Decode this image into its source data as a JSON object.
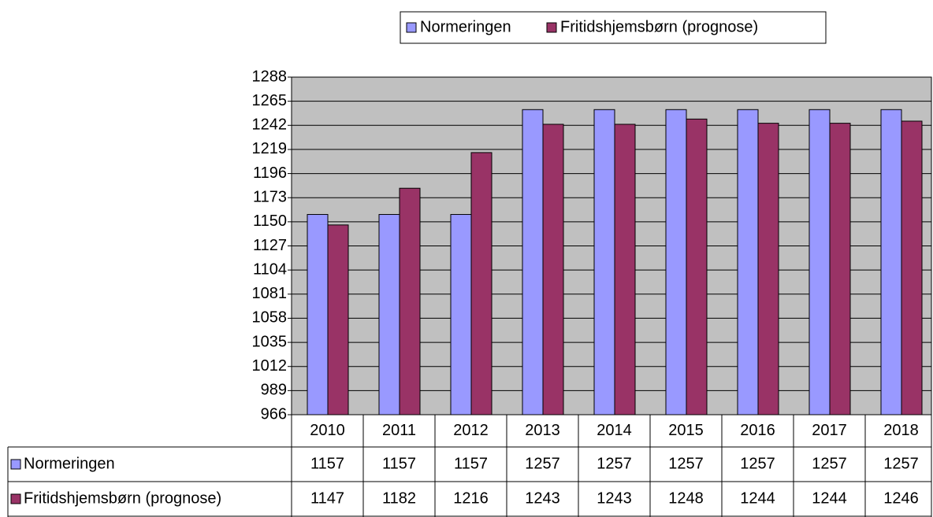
{
  "chart_data": {
    "type": "bar",
    "categories": [
      "2010",
      "2011",
      "2012",
      "2013",
      "2014",
      "2015",
      "2016",
      "2017",
      "2018"
    ],
    "series": [
      {
        "name": "Normeringen",
        "color": "#9999ff",
        "values": [
          1157,
          1157,
          1157,
          1257,
          1257,
          1257,
          1257,
          1257,
          1257
        ]
      },
      {
        "name": "Fritidshjemsbørn (prognose)",
        "color": "#993366",
        "values": [
          1147,
          1182,
          1216,
          1243,
          1243,
          1248,
          1244,
          1244,
          1246
        ]
      }
    ],
    "ylim": [
      966,
      1288
    ],
    "yticks": [
      966,
      989,
      1012,
      1035,
      1058,
      1081,
      1104,
      1127,
      1150,
      1173,
      1196,
      1219,
      1242,
      1265,
      1288
    ],
    "grid": true,
    "legend": "top"
  }
}
